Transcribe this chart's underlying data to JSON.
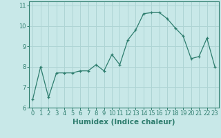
{
  "x": [
    0,
    1,
    2,
    3,
    4,
    5,
    6,
    7,
    8,
    9,
    10,
    11,
    12,
    13,
    14,
    15,
    16,
    17,
    18,
    19,
    20,
    21,
    22,
    23
  ],
  "y": [
    6.4,
    8.0,
    6.5,
    7.7,
    7.7,
    7.7,
    7.8,
    7.8,
    8.1,
    7.8,
    8.6,
    8.1,
    9.3,
    9.8,
    10.6,
    10.65,
    10.65,
    10.35,
    9.9,
    9.5,
    8.4,
    8.5,
    9.4,
    8.0
  ],
  "line_color": "#2e7d6e",
  "marker": "+",
  "bg_color": "#c8e8e8",
  "grid_color": "#aed4d4",
  "xlabel": "Humidex (Indice chaleur)",
  "xlim": [
    -0.5,
    23.5
  ],
  "ylim": [
    6.0,
    11.2
  ],
  "yticks": [
    6,
    7,
    8,
    9,
    10,
    11
  ],
  "xticks": [
    0,
    1,
    2,
    3,
    4,
    5,
    6,
    7,
    8,
    9,
    10,
    11,
    12,
    13,
    14,
    15,
    16,
    17,
    18,
    19,
    20,
    21,
    22,
    23
  ],
  "spine_color": "#2e7d6e",
  "tick_color": "#2e7d6e",
  "label_color": "#2e7d6e",
  "tick_fontsize": 6,
  "label_fontsize": 7.5
}
